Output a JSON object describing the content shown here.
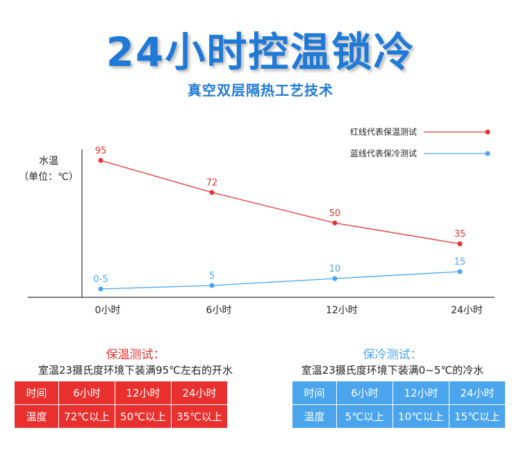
{
  "header": {
    "title": "24小时控温锁冷",
    "subtitle": "真空双层隔热工艺技术"
  },
  "chart_data": {
    "type": "line",
    "ylabel": "水温",
    "yunit": "（单位：℃）",
    "categories": [
      "0小时",
      "6小时",
      "12小时",
      "24小时"
    ],
    "series": [
      {
        "name": "红线代表保温测试",
        "color": "#e8312f",
        "values": [
          95,
          72,
          50,
          35
        ],
        "labels": [
          "95",
          "72",
          "50",
          "35"
        ]
      },
      {
        "name": "蓝线代表保冷测试",
        "color": "#4aa5ec",
        "values": [
          2.5,
          5,
          10,
          15
        ],
        "labels": [
          "0-5",
          "5",
          "10",
          "15"
        ]
      }
    ],
    "ylim": [
      0,
      100
    ],
    "legend": "top-right",
    "grid": false
  },
  "warm_section": {
    "title": "保温测试：",
    "desc": "室温23摄氏度环境下装满95℃左右的开水",
    "color": "#e8312f",
    "rows": [
      [
        "时间",
        "6小时",
        "12小时",
        "24小时"
      ],
      [
        "温度",
        "72℃以上",
        "50℃以上",
        "35℃以上"
      ]
    ]
  },
  "cold_section": {
    "title": "保冷测试：",
    "desc": "室温23摄氏度环境下装满0~5℃的冷水",
    "color": "#4aa5ec",
    "rows": [
      [
        "时间",
        "6小时",
        "12小时",
        "24小时"
      ],
      [
        "温度",
        "5℃以上",
        "10℃以上",
        "15℃以上"
      ]
    ]
  }
}
